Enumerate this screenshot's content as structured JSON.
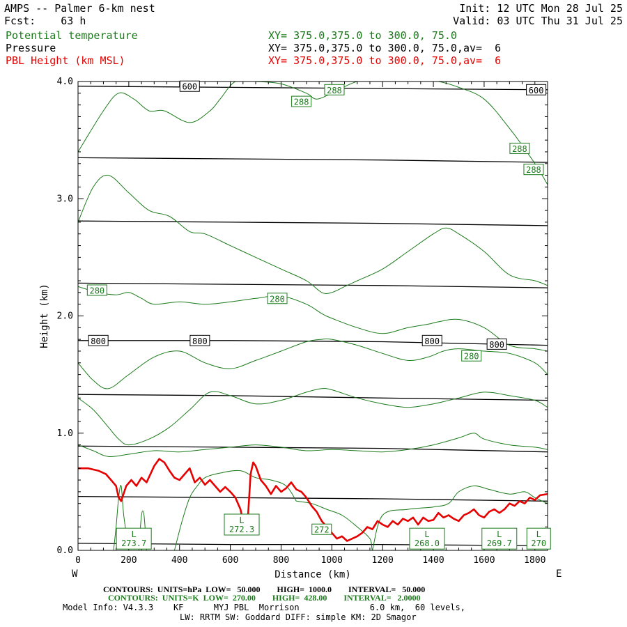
{
  "header": {
    "title": "AMPS -- Palmer 6-km nest",
    "fcst": "Fcst:    63 h",
    "init": "Init: 12 UTC Mon 28 Jul 25",
    "valid": "Valid: 03 UTC Thu 31 Jul 25",
    "fields": [
      {
        "name": "Potential temperature",
        "xy": "XY= 375.0,375.0 to 300.0, 75.0",
        "color": "#1a7a1a"
      },
      {
        "name": "Pressure",
        "xy": "XY= 375.0,375.0 to 300.0, 75.0,av=  6",
        "color": "#000000"
      },
      {
        "name": "PBL Height (km MSL)",
        "xy": "XY= 375.0,375.0 to 300.0, 75.0,av=  6",
        "color": "#e60000"
      }
    ]
  },
  "chart_data": {
    "type": "line",
    "xlabel": "Distance (km)",
    "ylabel": "Height (km)",
    "xlim": [
      0,
      1850
    ],
    "ylim": [
      0,
      4.0
    ],
    "xticks": [
      0,
      200,
      400,
      600,
      800,
      1000,
      1200,
      1400,
      1600,
      1800
    ],
    "yticks": [
      "0.0",
      "1.0",
      "2.0",
      "3.0",
      "4.0"
    ],
    "west_label": "W",
    "east_label": "E",
    "pressure_contours": [
      {
        "label": "600",
        "x": [
          0,
          600,
          1200,
          1850
        ],
        "y": [
          3.96,
          3.95,
          3.94,
          3.93
        ]
      },
      {
        "label": "",
        "x": [
          0,
          600,
          1200,
          1850
        ],
        "y": [
          3.35,
          3.34,
          3.33,
          3.31
        ]
      },
      {
        "label": "",
        "x": [
          0,
          600,
          1200,
          1850
        ],
        "y": [
          2.81,
          2.8,
          2.79,
          2.77
        ]
      },
      {
        "label": "",
        "x": [
          0,
          600,
          1200,
          1850
        ],
        "y": [
          2.28,
          2.27,
          2.26,
          2.24
        ]
      },
      {
        "label": "800",
        "x": [
          0,
          600,
          1200,
          1850
        ],
        "y": [
          1.79,
          1.79,
          1.78,
          1.75
        ]
      },
      {
        "label": "",
        "x": [
          0,
          600,
          1200,
          1850
        ],
        "y": [
          1.33,
          1.32,
          1.3,
          1.28
        ]
      },
      {
        "label": "",
        "x": [
          0,
          600,
          1200,
          1850
        ],
        "y": [
          0.89,
          0.88,
          0.87,
          0.84
        ]
      },
      {
        "label": "",
        "x": [
          0,
          600,
          1200,
          1850
        ],
        "y": [
          0.46,
          0.45,
          0.44,
          0.42
        ]
      },
      {
        "label": "",
        "x": [
          0,
          600,
          1200,
          1850
        ],
        "y": [
          0.06,
          0.05,
          0.05,
          0.04
        ]
      }
    ],
    "pressure_labels": [
      {
        "text": "600",
        "x": 440,
        "y": 3.96
      },
      {
        "text": "600",
        "x": 1805,
        "y": 3.93
      },
      {
        "text": "800",
        "x": 80,
        "y": 1.79
      },
      {
        "text": "800",
        "x": 480,
        "y": 1.79
      },
      {
        "text": "800",
        "x": 1395,
        "y": 1.79
      },
      {
        "text": "800",
        "x": 1650,
        "y": 1.76
      }
    ],
    "theta_contours": [
      {
        "x": [
          0,
          100,
          160,
          220,
          280,
          340,
          440,
          520,
          560,
          620,
          700,
          800,
          900,
          940,
          1000,
          1100,
          1200,
          1300,
          1360,
          1420,
          1500,
          1600,
          1700,
          1800,
          1850
        ],
        "y": [
          3.4,
          3.75,
          3.9,
          3.85,
          3.75,
          3.75,
          3.65,
          3.75,
          3.85,
          4.0,
          4.0,
          3.98,
          3.9,
          3.85,
          3.9,
          4.0,
          4.0,
          4.0,
          4.0,
          4.0,
          3.95,
          3.85,
          3.6,
          3.3,
          3.12
        ]
      },
      {
        "x": [
          0,
          60,
          120,
          200,
          280,
          360,
          440,
          500,
          600,
          700,
          800,
          900,
          960,
          1000,
          1050,
          1100,
          1200,
          1300,
          1400,
          1450,
          1500,
          1600,
          1700,
          1800,
          1850
        ],
        "y": [
          2.8,
          3.1,
          3.2,
          3.05,
          2.9,
          2.85,
          2.72,
          2.7,
          2.6,
          2.5,
          2.4,
          2.3,
          2.2,
          2.2,
          2.25,
          2.3,
          2.4,
          2.55,
          2.7,
          2.75,
          2.7,
          2.55,
          2.35,
          2.3,
          2.26
        ]
      },
      {
        "x": [
          0,
          80,
          150,
          200,
          250,
          300,
          400,
          500,
          600,
          700,
          800,
          900,
          960,
          1000,
          1100,
          1200,
          1300,
          1380,
          1420,
          1500,
          1600,
          1700,
          1800,
          1850
        ],
        "y": [
          2.25,
          2.2,
          2.18,
          2.2,
          2.15,
          2.1,
          2.12,
          2.1,
          2.12,
          2.15,
          2.17,
          2.1,
          2.02,
          1.98,
          1.9,
          1.85,
          1.9,
          1.93,
          1.95,
          1.97,
          1.9,
          1.75,
          1.72,
          1.7
        ]
      },
      {
        "x": [
          0,
          60,
          120,
          200,
          300,
          400,
          500,
          600,
          700,
          800,
          900,
          960,
          1000,
          1100,
          1200,
          1300,
          1380,
          1440,
          1500,
          1600,
          1700,
          1800,
          1850
        ],
        "y": [
          1.6,
          1.45,
          1.38,
          1.5,
          1.65,
          1.7,
          1.6,
          1.55,
          1.62,
          1.7,
          1.78,
          1.8,
          1.8,
          1.75,
          1.68,
          1.62,
          1.65,
          1.7,
          1.72,
          1.7,
          1.68,
          1.6,
          1.5
        ]
      },
      {
        "x": [
          0,
          60,
          120,
          160,
          200,
          280,
          360,
          440,
          520,
          600,
          700,
          800,
          900,
          960,
          1000,
          1100,
          1200,
          1300,
          1400,
          1500,
          1600,
          1700,
          1800,
          1850
        ],
        "y": [
          1.3,
          1.2,
          1.05,
          0.95,
          0.9,
          0.95,
          1.05,
          1.2,
          1.35,
          1.32,
          1.25,
          1.28,
          1.35,
          1.38,
          1.37,
          1.3,
          1.25,
          1.22,
          1.25,
          1.3,
          1.35,
          1.32,
          1.28,
          1.22
        ]
      },
      {
        "x": [
          0,
          60,
          120,
          200,
          300,
          400,
          500,
          600,
          700,
          800,
          900,
          1000,
          1100,
          1200,
          1300,
          1400,
          1500,
          1560,
          1600,
          1700,
          1800,
          1850
        ],
        "y": [
          0.9,
          0.85,
          0.8,
          0.82,
          0.85,
          0.84,
          0.86,
          0.88,
          0.9,
          0.88,
          0.85,
          0.86,
          0.85,
          0.84,
          0.86,
          0.9,
          0.96,
          1.0,
          0.95,
          0.9,
          0.88,
          0.86
        ]
      },
      {
        "x": [
          140,
          150,
          160,
          170,
          180,
          200
        ],
        "y": [
          0.0,
          0.2,
          0.45,
          0.55,
          0.3,
          0.0
        ]
      },
      {
        "x": [
          240,
          250,
          260,
          270
        ],
        "y": [
          0.0,
          0.3,
          0.3,
          0.0
        ]
      },
      {
        "x": [
          380,
          410,
          440,
          470,
          500,
          560,
          640,
          700,
          760,
          820,
          860
        ],
        "y": [
          0.0,
          0.25,
          0.45,
          0.55,
          0.62,
          0.66,
          0.68,
          0.62,
          0.6,
          0.55,
          0.42
        ]
      },
      {
        "x": [
          860,
          920,
          980,
          1040,
          1100,
          1150,
          1160,
          1180
        ],
        "y": [
          0.42,
          0.4,
          0.35,
          0.3,
          0.2,
          0.1,
          0.0,
          0.0
        ]
      },
      {
        "x": [
          1160,
          1200,
          1300,
          1400,
          1460,
          1500,
          1560,
          1620,
          1700,
          1760,
          1800,
          1850
        ],
        "y": [
          0.0,
          0.3,
          0.35,
          0.37,
          0.4,
          0.5,
          0.55,
          0.52,
          0.48,
          0.5,
          0.45,
          0.4
        ]
      }
    ],
    "theta_labels": [
      {
        "text": "288",
        "x": 880,
        "y": 3.83
      },
      {
        "text": "288",
        "x": 1010,
        "y": 3.93
      },
      {
        "text": "288",
        "x": 1740,
        "y": 3.43
      },
      {
        "text": "288",
        "x": 1795,
        "y": 3.25
      },
      {
        "text": "280",
        "x": 75,
        "y": 2.22
      },
      {
        "text": "280",
        "x": 785,
        "y": 2.15
      },
      {
        "text": "280",
        "x": 1550,
        "y": 1.66
      },
      {
        "text": "272",
        "x": 960,
        "y": 0.18
      }
    ],
    "low_markers": [
      {
        "letter": "L",
        "value": "273.7",
        "x": 220,
        "y": 0.1
      },
      {
        "letter": "L",
        "value": "272.3",
        "x": 645,
        "y": 0.22
      },
      {
        "letter": "L",
        "value": "268.0",
        "x": 1375,
        "y": 0.1
      },
      {
        "letter": "L",
        "value": "269.7",
        "x": 1660,
        "y": 0.1
      },
      {
        "letter": "L",
        "value": "270",
        "x": 1815,
        "y": 0.1
      }
    ],
    "series": [
      {
        "name": "PBL Height (km MSL)",
        "color": "#e60000",
        "x": [
          0,
          40,
          80,
          110,
          130,
          150,
          160,
          170,
          190,
          210,
          230,
          250,
          270,
          300,
          320,
          340,
          360,
          380,
          400,
          420,
          440,
          460,
          480,
          500,
          520,
          540,
          560,
          580,
          600,
          620,
          640,
          650,
          660,
          670,
          680,
          690,
          700,
          720,
          740,
          760,
          780,
          800,
          820,
          840,
          860,
          880,
          900,
          920,
          940,
          960,
          980,
          1000,
          1020,
          1040,
          1060,
          1080,
          1100,
          1120,
          1140,
          1160,
          1180,
          1200,
          1220,
          1240,
          1260,
          1280,
          1300,
          1320,
          1340,
          1360,
          1380,
          1400,
          1420,
          1440,
          1460,
          1480,
          1500,
          1520,
          1540,
          1560,
          1580,
          1600,
          1620,
          1640,
          1660,
          1680,
          1700,
          1720,
          1740,
          1760,
          1780,
          1800,
          1820,
          1850
        ],
        "y": [
          0.7,
          0.7,
          0.68,
          0.65,
          0.6,
          0.55,
          0.45,
          0.42,
          0.55,
          0.6,
          0.55,
          0.62,
          0.58,
          0.72,
          0.78,
          0.75,
          0.68,
          0.62,
          0.6,
          0.65,
          0.7,
          0.58,
          0.62,
          0.56,
          0.6,
          0.55,
          0.5,
          0.54,
          0.5,
          0.45,
          0.35,
          0.25,
          0.22,
          0.3,
          0.65,
          0.75,
          0.72,
          0.6,
          0.55,
          0.48,
          0.55,
          0.5,
          0.53,
          0.58,
          0.52,
          0.5,
          0.45,
          0.38,
          0.33,
          0.25,
          0.2,
          0.15,
          0.1,
          0.12,
          0.08,
          0.1,
          0.12,
          0.15,
          0.2,
          0.18,
          0.25,
          0.22,
          0.2,
          0.25,
          0.22,
          0.27,
          0.25,
          0.28,
          0.22,
          0.28,
          0.25,
          0.26,
          0.32,
          0.28,
          0.3,
          0.27,
          0.25,
          0.3,
          0.32,
          0.35,
          0.3,
          0.28,
          0.33,
          0.35,
          0.32,
          0.35,
          0.4,
          0.38,
          0.42,
          0.4,
          0.45,
          0.43,
          0.47,
          0.48
        ]
      }
    ]
  },
  "footer": {
    "line1": "CONTOURS:  UNITS=hPa  LOW=   50.000        HIGH=  1000.0        INTERVAL=   50.000",
    "line2": "CONTOURS:  UNITS=K  LOW=  270.00        HIGH=  428.00        INTERVAL=   2.0000",
    "line3": "Model Info: V4.3.3    KF      MYJ PBL  Morrison              6.0 km,  60 levels,",
    "line4": "LW: RRTM SW: Goddard DIFF: simple KM: 2D Smagor"
  }
}
